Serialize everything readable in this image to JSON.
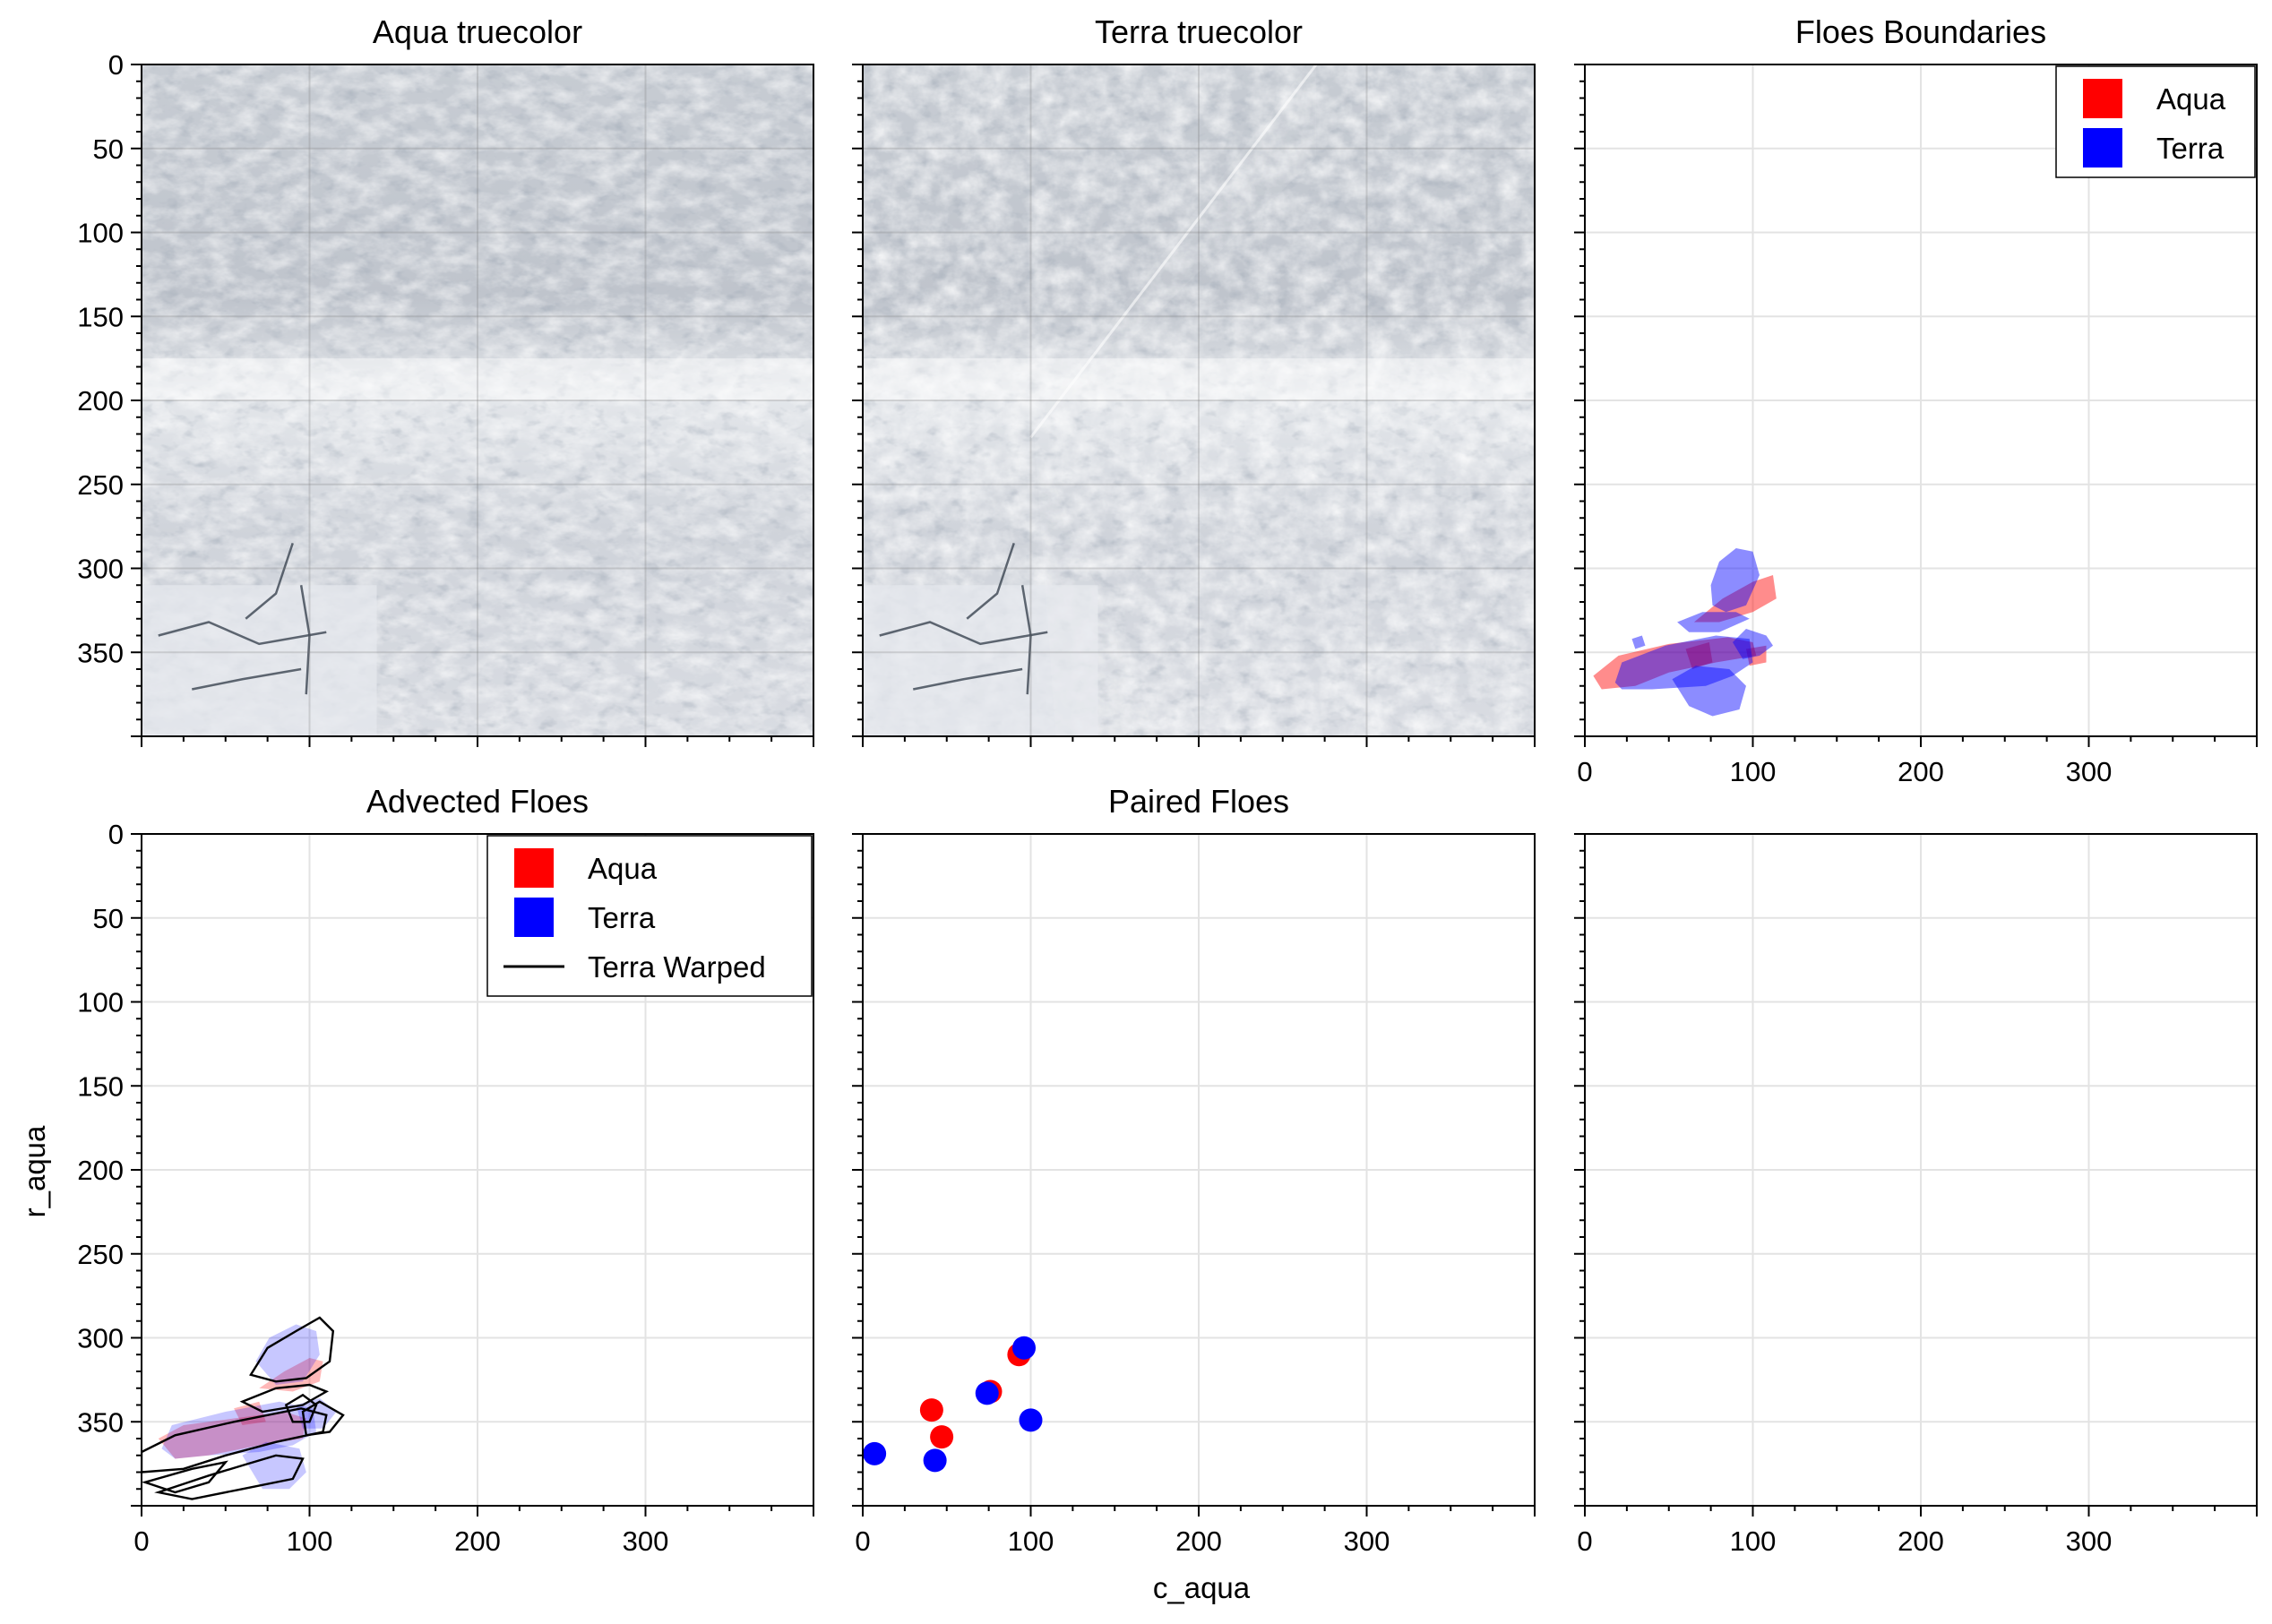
{
  "figure": {
    "shared_xlabel": "c_aqua",
    "shared_ylabel": "r_aqua"
  },
  "colors": {
    "aqua": "#ff0000",
    "terra": "#0000ff",
    "warped": "#000000",
    "grid": "#e3e3e3"
  },
  "chart_data": [
    {
      "panel": "aqua-truecolor",
      "type": "image",
      "title": "Aqua truecolor",
      "xlim": [
        0,
        400
      ],
      "ylim": [
        400,
        0
      ],
      "xticks": [
        0,
        100,
        200,
        300
      ],
      "yticks": [
        0,
        50,
        100,
        150,
        200,
        250,
        300,
        350
      ],
      "grid": true
    },
    {
      "panel": "terra-truecolor",
      "type": "image",
      "title": "Terra truecolor",
      "xlim": [
        0,
        400
      ],
      "ylim": [
        400,
        0
      ],
      "xticks": [
        0,
        100,
        200,
        300
      ],
      "yticks": [
        0,
        50,
        100,
        150,
        200,
        250,
        300,
        350
      ],
      "grid": true
    },
    {
      "panel": "floes-boundaries",
      "type": "area",
      "title": "Floes Boundaries",
      "xlim": [
        0,
        400
      ],
      "ylim": [
        400,
        0
      ],
      "xticks": [
        0,
        100,
        200,
        300
      ],
      "yticks": [
        0,
        50,
        100,
        150,
        200,
        250,
        300,
        350
      ],
      "grid": true,
      "legend": {
        "placement": "top-right",
        "entries": [
          "Aqua",
          "Terra"
        ]
      },
      "series": [
        {
          "name": "Aqua",
          "polygons": [
            [
              [
                5,
                364
              ],
              [
                20,
                352
              ],
              [
                50,
                345
              ],
              [
                85,
                341
              ],
              [
                100,
                344
              ],
              [
                102,
                352
              ],
              [
                78,
                356
              ],
              [
                50,
                362
              ],
              [
                30,
                370
              ],
              [
                10,
                372
              ]
            ],
            [
              [
                65,
                332
              ],
              [
                82,
                318
              ],
              [
                100,
                308
              ],
              [
                112,
                304
              ],
              [
                114,
                318
              ],
              [
                100,
                326
              ],
              [
                80,
                332
              ]
            ],
            [
              [
                96,
                348
              ],
              [
                108,
                346
              ],
              [
                108,
                356
              ],
              [
                98,
                358
              ]
            ],
            [
              [
                60,
                348
              ],
              [
                74,
                344
              ],
              [
                76,
                356
              ],
              [
                64,
                360
              ]
            ]
          ]
        },
        {
          "name": "Terra",
          "polygons": [
            [
              [
                18,
                368
              ],
              [
                22,
                356
              ],
              [
                48,
                346
              ],
              [
                78,
                340
              ],
              [
                98,
                342
              ],
              [
                100,
                356
              ],
              [
                88,
                364
              ],
              [
                72,
                370
              ],
              [
                40,
                372
              ],
              [
                22,
                372
              ]
            ],
            [
              [
                75,
                310
              ],
              [
                80,
                296
              ],
              [
                90,
                288
              ],
              [
                100,
                290
              ],
              [
                104,
                304
              ],
              [
                96,
                322
              ],
              [
                84,
                326
              ],
              [
                76,
                322
              ]
            ],
            [
              [
                55,
                332
              ],
              [
                70,
                326
              ],
              [
                90,
                326
              ],
              [
                98,
                330
              ],
              [
                80,
                338
              ],
              [
                62,
                338
              ]
            ],
            [
              [
                52,
                366
              ],
              [
                66,
                358
              ],
              [
                86,
                360
              ],
              [
                96,
                370
              ],
              [
                92,
                384
              ],
              [
                76,
                388
              ],
              [
                62,
                382
              ]
            ],
            [
              [
                88,
                344
              ],
              [
                96,
                336
              ],
              [
                108,
                340
              ],
              [
                112,
                346
              ],
              [
                104,
                352
              ],
              [
                94,
                354
              ]
            ],
            [
              [
                28,
                342
              ],
              [
                34,
                340
              ],
              [
                36,
                346
              ],
              [
                30,
                348
              ]
            ]
          ]
        }
      ]
    },
    {
      "panel": "advected-floes",
      "type": "area",
      "title": "Advected Floes",
      "xlim": [
        0,
        400
      ],
      "ylim": [
        400,
        0
      ],
      "xticks": [
        0,
        100,
        200,
        300
      ],
      "yticks": [
        0,
        50,
        100,
        150,
        200,
        250,
        300,
        350
      ],
      "grid": true,
      "legend": {
        "placement": "top-right",
        "entries": [
          "Aqua",
          "Terra",
          "Terra Warped"
        ]
      },
      "series": [
        {
          "name": "Aqua",
          "polygons": [
            [
              [
                10,
                360
              ],
              [
                25,
                352
              ],
              [
                55,
                348
              ],
              [
                85,
                344
              ],
              [
                98,
                348
              ],
              [
                96,
                360
              ],
              [
                70,
                364
              ],
              [
                40,
                370
              ],
              [
                20,
                372
              ]
            ],
            [
              [
                70,
                330
              ],
              [
                85,
                320
              ],
              [
                100,
                312
              ],
              [
                108,
                314
              ],
              [
                106,
                326
              ],
              [
                90,
                332
              ]
            ],
            [
              [
                55,
                342
              ],
              [
                70,
                338
              ],
              [
                74,
                350
              ],
              [
                60,
                352
              ]
            ]
          ]
        },
        {
          "name": "Terra",
          "polygons": [
            [
              [
                12,
                366
              ],
              [
                18,
                352
              ],
              [
                50,
                344
              ],
              [
                82,
                338
              ],
              [
                102,
                342
              ],
              [
                104,
                356
              ],
              [
                90,
                364
              ],
              [
                70,
                368
              ],
              [
                40,
                370
              ],
              [
                20,
                372
              ]
            ],
            [
              [
                68,
                314
              ],
              [
                76,
                300
              ],
              [
                92,
                292
              ],
              [
                104,
                296
              ],
              [
                106,
                310
              ],
              [
                96,
                326
              ],
              [
                80,
                328
              ]
            ],
            [
              [
                60,
                370
              ],
              [
                74,
                362
              ],
              [
                94,
                366
              ],
              [
                98,
                380
              ],
              [
                88,
                390
              ],
              [
                72,
                390
              ]
            ],
            [
              [
                92,
                340
              ],
              [
                106,
                336
              ],
              [
                116,
                344
              ],
              [
                108,
                354
              ],
              [
                96,
                354
              ]
            ]
          ]
        },
        {
          "name": "Terra Warped",
          "polygons": [
            [
              [
                0,
                368
              ],
              [
                20,
                358
              ],
              [
                55,
                350
              ],
              [
                95,
                342
              ],
              [
                110,
                346
              ],
              [
                108,
                356
              ],
              [
                80,
                362
              ],
              [
                50,
                370
              ],
              [
                25,
                378
              ],
              [
                0,
                380
              ]
            ],
            [
              [
                65,
                322
              ],
              [
                75,
                306
              ],
              [
                92,
                296
              ],
              [
                106,
                288
              ],
              [
                114,
                296
              ],
              [
                112,
                314
              ],
              [
                98,
                324
              ],
              [
                80,
                326
              ]
            ],
            [
              [
                60,
                338
              ],
              [
                80,
                330
              ],
              [
                100,
                328
              ],
              [
                110,
                332
              ],
              [
                96,
                340
              ],
              [
                72,
                344
              ]
            ],
            [
              [
                10,
                392
              ],
              [
                40,
                382
              ],
              [
                60,
                376
              ],
              [
                80,
                370
              ],
              [
                96,
                372
              ],
              [
                90,
                384
              ],
              [
                60,
                390
              ],
              [
                30,
                396
              ]
            ],
            [
              [
                96,
                344
              ],
              [
                106,
                338
              ],
              [
                120,
                346
              ],
              [
                112,
                356
              ],
              [
                98,
                358
              ]
            ],
            [
              [
                2,
                386
              ],
              [
                30,
                378
              ],
              [
                50,
                374
              ],
              [
                40,
                386
              ],
              [
                20,
                392
              ]
            ],
            [
              [
                86,
                340
              ],
              [
                96,
                334
              ],
              [
                104,
                340
              ],
              [
                100,
                350
              ],
              [
                90,
                350
              ]
            ]
          ]
        }
      ]
    },
    {
      "panel": "paired-floes",
      "type": "scatter",
      "title": "Paired Floes",
      "xlabel": "c_aqua",
      "xlim": [
        0,
        400
      ],
      "ylim": [
        400,
        0
      ],
      "xticks": [
        0,
        100,
        200,
        300
      ],
      "yticks": [
        0,
        50,
        100,
        150,
        200,
        250,
        300,
        350
      ],
      "grid": true,
      "series": [
        {
          "name": "Aqua",
          "points": [
            [
              93,
              310
            ],
            [
              76,
              332
            ],
            [
              41,
              343
            ],
            [
              47,
              359
            ]
          ]
        },
        {
          "name": "Terra",
          "points": [
            [
              96,
              306
            ],
            [
              74,
              333
            ],
            [
              100,
              349
            ],
            [
              7,
              369
            ],
            [
              43,
              373
            ]
          ]
        }
      ]
    },
    {
      "panel": "empty",
      "type": "scatter",
      "xlim": [
        0,
        400
      ],
      "ylim": [
        400,
        0
      ],
      "xticks": [
        0,
        100,
        200,
        300
      ],
      "yticks": [
        0,
        50,
        100,
        150,
        200,
        250,
        300,
        350
      ],
      "grid": true,
      "series": []
    }
  ]
}
